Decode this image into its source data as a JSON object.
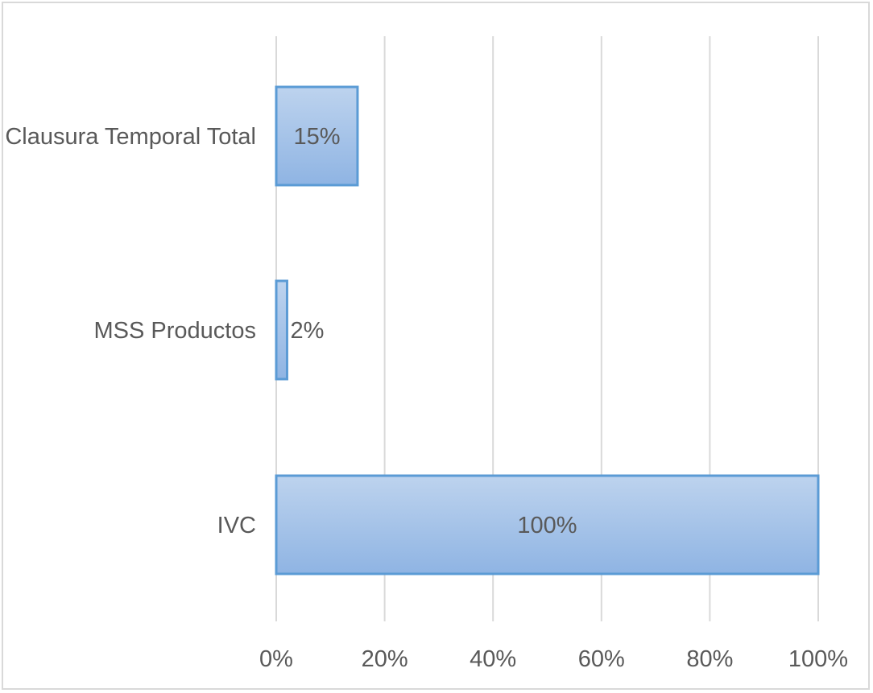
{
  "chart_data": {
    "type": "bar",
    "orientation": "horizontal",
    "categories": [
      "Clausura Temporal Total",
      "MSS Productos",
      "IVC"
    ],
    "values": [
      15,
      2,
      100
    ],
    "data_labels": [
      "15%",
      "2%",
      "100%"
    ],
    "xlim": [
      0,
      100
    ],
    "x_ticks": [
      0,
      20,
      40,
      60,
      80,
      100
    ],
    "x_tick_labels": [
      "0%",
      "20%",
      "40%",
      "60%",
      "80%",
      "100%"
    ],
    "grid": true,
    "legend": "none",
    "colors": {
      "bar_fill_top": "#bdd3ee",
      "bar_fill_bottom": "#8fb4e3",
      "bar_stroke": "#5b9bd5",
      "gridline": "#d9d9d9",
      "text": "#595959"
    }
  }
}
